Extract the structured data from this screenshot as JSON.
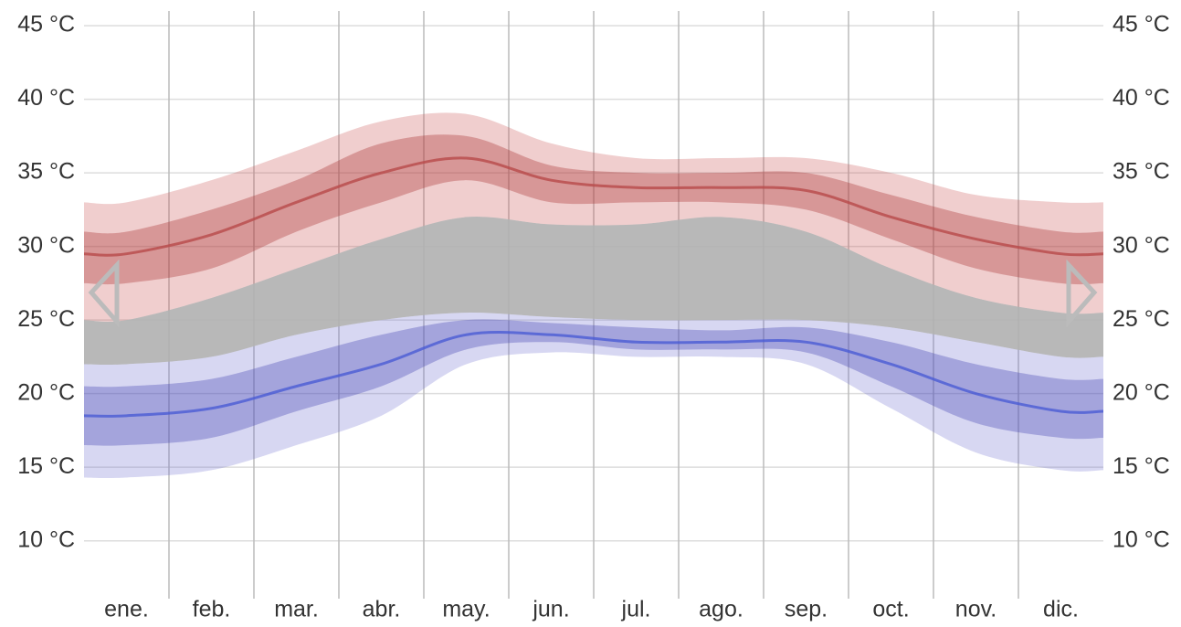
{
  "chart_data": {
    "type": "band",
    "categories": [
      "ene.",
      "feb.",
      "mar.",
      "abr.",
      "may.",
      "jun.",
      "jul.",
      "ago.",
      "sep.",
      "oct.",
      "nov.",
      "dic."
    ],
    "ylim": [
      7,
      46
    ],
    "yticks": [
      {
        "value": 10,
        "label": "10 °C"
      },
      {
        "value": 15,
        "label": "15 °C"
      },
      {
        "value": 20,
        "label": "20 °C"
      },
      {
        "value": 25,
        "label": "25 °C"
      },
      {
        "value": 30,
        "label": "30 °C"
      },
      {
        "value": 35,
        "label": "35 °C"
      },
      {
        "value": 40,
        "label": "40 °C"
      },
      {
        "value": 45,
        "label": "45 °C"
      }
    ],
    "grid": true,
    "bands": [
      {
        "color": "rgba(200,80,80,0.28)",
        "lower": [
          25,
          26.5,
          28.5,
          30.5,
          32,
          31.5,
          31.5,
          32,
          31,
          28.5,
          26.5,
          25.5
        ],
        "upper": [
          33,
          34.5,
          36.5,
          38.5,
          39,
          37,
          36,
          36,
          36,
          35,
          33.5,
          33
        ]
      },
      {
        "color": "rgba(170,50,50,0.35)",
        "lower": [
          27.5,
          28.5,
          31,
          33,
          34.5,
          33,
          33,
          33,
          32.5,
          30.5,
          28.5,
          27.5
        ],
        "upper": [
          31,
          32.5,
          34.5,
          37,
          37.5,
          35.5,
          35,
          35,
          35,
          33.5,
          32,
          31
        ]
      },
      {
        "color": "rgba(110,110,210,0.28)",
        "lower": [
          14.3,
          14.8,
          16.5,
          18.5,
          22,
          22.8,
          22.5,
          22.5,
          22,
          19,
          16,
          14.8
        ],
        "upper": [
          22,
          22.5,
          24,
          25,
          25.5,
          25.2,
          25,
          25,
          25,
          24.5,
          23.5,
          22.5
        ]
      },
      {
        "color": "rgba(70,70,180,0.35)",
        "lower": [
          16.5,
          17,
          18.8,
          20.5,
          23,
          23.5,
          23,
          23,
          22.8,
          20.5,
          18,
          17
        ],
        "upper": [
          20.5,
          21,
          22.5,
          24,
          25,
          24.8,
          24.5,
          24.3,
          24.5,
          23.5,
          22,
          21
        ]
      }
    ],
    "series": [
      {
        "color": "#b84a4a",
        "values": [
          29.5,
          30.8,
          33,
          35,
          36,
          34.5,
          34,
          34,
          33.8,
          32,
          30.5,
          29.5
        ]
      },
      {
        "color": "#4a5bd4",
        "values": [
          18.5,
          19,
          20.5,
          22,
          24,
          24,
          23.5,
          23.5,
          23.5,
          22,
          20,
          18.8
        ]
      }
    ]
  }
}
